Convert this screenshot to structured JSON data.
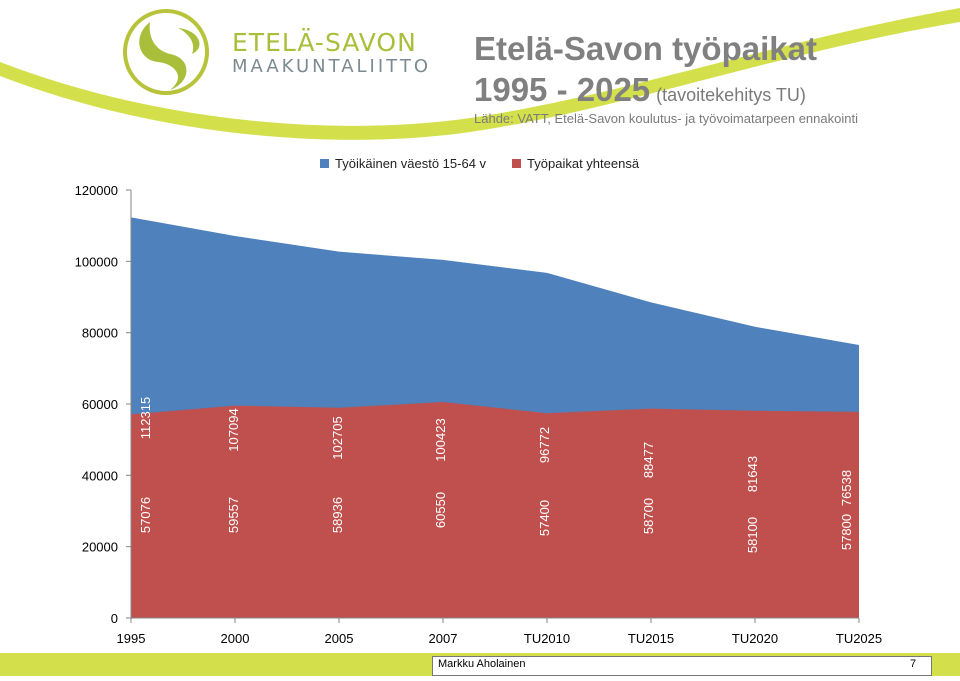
{
  "header": {
    "logo_line1": "ETELÄ-SAVON",
    "logo_line2": "MAAKUNTALIITTO",
    "title_line1": "Etelä-Savon työpaikat",
    "title_line2": "1995 - 2025",
    "title_note": "(tavoitekehitys TU)",
    "source": "Lähde: VATT, Etelä-Savon koulutus- ja työvoimatarpeen ennakointi"
  },
  "colors": {
    "series_working_age": "#4f81bd",
    "series_jobs": "#c0504d",
    "accent_green": "#d4e04b"
  },
  "chart_data": {
    "type": "area",
    "title": "Etelä-Savon työpaikat 1995 - 2025",
    "categories": [
      "1995",
      "2000",
      "2005",
      "2007",
      "TU2010",
      "TU2015",
      "TU2020",
      "TU2025"
    ],
    "series": [
      {
        "name": "Työikäinen väestö 15-64 v",
        "values": [
          112315,
          107094,
          102705,
          100423,
          96772,
          88477,
          81643,
          76538
        ],
        "labels": [
          "112315",
          "107094",
          "102705",
          "100423",
          "96772",
          "88477",
          "81643",
          "76538"
        ]
      },
      {
        "name": "Työpaikat yhteensä",
        "values": [
          57076,
          59557,
          58936,
          60550,
          57400,
          58700,
          58100,
          57800
        ],
        "labels": [
          "57076",
          "59557",
          "58936",
          "60550",
          "57400",
          "58700",
          "58100",
          "57800"
        ]
      }
    ],
    "ylim": [
      0,
      120000
    ],
    "yticks": [
      "0",
      "20000",
      "40000",
      "60000",
      "80000",
      "100000",
      "120000"
    ],
    "xlabel": "",
    "ylabel": "",
    "grid": false,
    "legend_position": "top"
  },
  "footer": {
    "author": "Markku Aholainen",
    "page": "7"
  }
}
